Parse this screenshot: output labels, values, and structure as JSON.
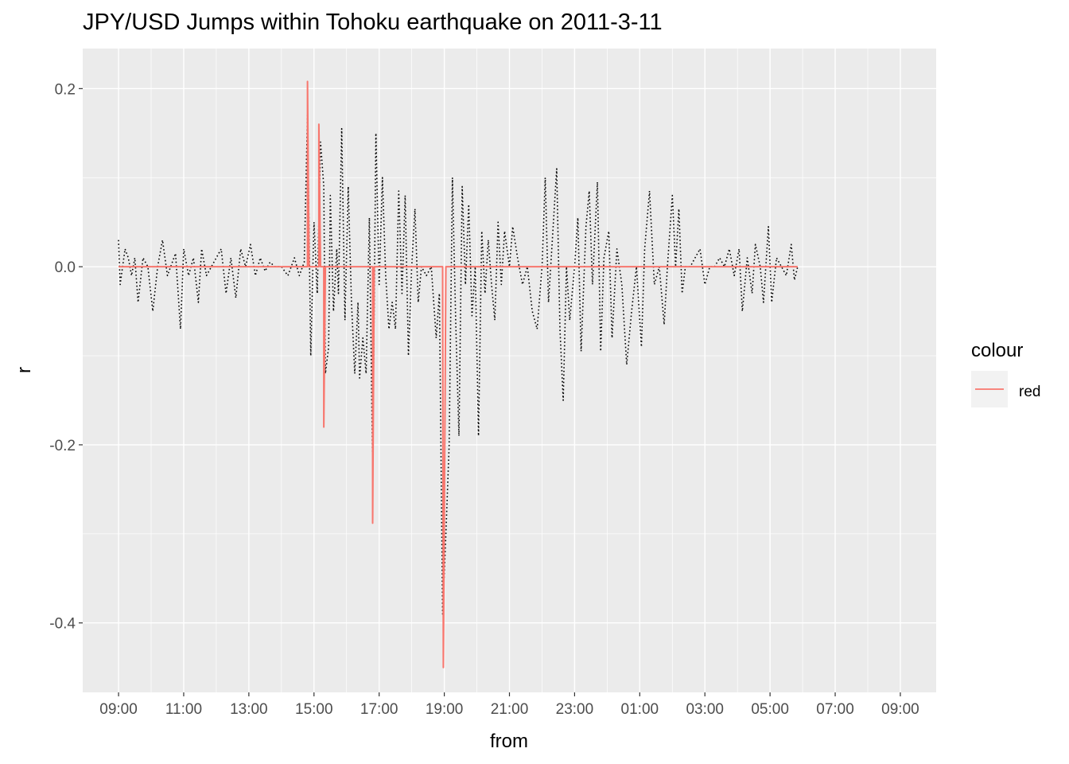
{
  "chart_data": {
    "type": "line",
    "title": "JPY/USD Jumps within Tohoku earthquake on 2011-3-11",
    "xlabel": "from",
    "ylabel": "r",
    "x_ticks": [
      "09:00",
      "11:00",
      "13:00",
      "15:00",
      "17:00",
      "19:00",
      "21:00",
      "23:00",
      "01:00",
      "03:00",
      "05:00",
      "07:00",
      "09:00"
    ],
    "x_tick_hours": [
      9,
      11,
      13,
      15,
      17,
      19,
      21,
      23,
      25,
      27,
      29,
      31,
      33
    ],
    "xlim_hours": [
      7.9,
      34.1
    ],
    "y_ticks": [
      0.2,
      0.0,
      -0.2,
      -0.4
    ],
    "y_tick_labels": [
      "0.2",
      "0.0",
      "-0.2",
      "-0.4"
    ],
    "ylim": [
      -0.478,
      0.245
    ],
    "grid": true,
    "legend": {
      "title": "colour",
      "placement": "right",
      "entries": [
        "red"
      ]
    },
    "series": [
      {
        "name": "red",
        "color": "#F8766D",
        "style": "solid",
        "points": [
          [
            9.0,
            0.0
          ],
          [
            14.8,
            0.0
          ],
          [
            14.8,
            0.208
          ],
          [
            14.85,
            0.0
          ],
          [
            15.15,
            0.0
          ],
          [
            15.15,
            0.16
          ],
          [
            15.2,
            0.0
          ],
          [
            15.3,
            0.0
          ],
          [
            15.3,
            -0.18
          ],
          [
            15.35,
            0.0
          ],
          [
            16.8,
            0.0
          ],
          [
            16.8,
            -0.288
          ],
          [
            16.85,
            0.0
          ],
          [
            18.95,
            0.0
          ],
          [
            18.97,
            -0.45
          ],
          [
            19.05,
            0.0
          ],
          [
            29.85,
            0.0
          ]
        ]
      },
      {
        "style": "dotted",
        "color": "#000000",
        "points": [
          [
            9.0,
            0.03
          ],
          [
            9.05,
            -0.02
          ],
          [
            9.2,
            0.02
          ],
          [
            9.3,
            0.01
          ],
          [
            9.4,
            -0.01
          ],
          [
            9.5,
            0.01
          ],
          [
            9.6,
            -0.04
          ],
          [
            9.75,
            0.01
          ],
          [
            9.9,
            0.0
          ],
          [
            10.05,
            -0.05
          ],
          [
            10.2,
            0.0
          ],
          [
            10.35,
            0.03
          ],
          [
            10.5,
            -0.01
          ],
          [
            10.6,
            0.0
          ],
          [
            10.75,
            0.015
          ],
          [
            10.9,
            -0.07
          ],
          [
            11.0,
            0.02
          ],
          [
            11.15,
            -0.01
          ],
          [
            11.3,
            0.01
          ],
          [
            11.45,
            -0.04
          ],
          [
            11.55,
            0.02
          ],
          [
            11.7,
            -0.01
          ],
          [
            11.85,
            0.0
          ],
          [
            12.0,
            0.01
          ],
          [
            12.15,
            0.02
          ],
          [
            12.3,
            -0.03
          ],
          [
            12.45,
            0.01
          ],
          [
            12.6,
            -0.035
          ],
          [
            12.75,
            0.02
          ],
          [
            12.9,
            0.0
          ],
          [
            13.05,
            0.025
          ],
          [
            13.2,
            -0.01
          ],
          [
            13.35,
            0.01
          ],
          [
            13.5,
            -0.005
          ],
          [
            13.65,
            0.005
          ],
          [
            13.8,
            0.0
          ],
          [
            14.0,
            0.0
          ],
          [
            14.2,
            -0.01
          ],
          [
            14.4,
            0.01
          ],
          [
            14.55,
            -0.01
          ],
          [
            14.7,
            0.005
          ],
          [
            14.8,
            0.17
          ],
          [
            14.9,
            -0.1
          ],
          [
            15.0,
            0.05
          ],
          [
            15.1,
            -0.03
          ],
          [
            15.2,
            0.14
          ],
          [
            15.3,
            0.09
          ],
          [
            15.35,
            -0.12
          ],
          [
            15.45,
            -0.09
          ],
          [
            15.5,
            0.08
          ],
          [
            15.6,
            -0.05
          ],
          [
            15.7,
            0.02
          ],
          [
            15.75,
            -0.03
          ],
          [
            15.85,
            0.155
          ],
          [
            15.95,
            -0.06
          ],
          [
            16.05,
            0.09
          ],
          [
            16.15,
            -0.04
          ],
          [
            16.25,
            -0.12
          ],
          [
            16.35,
            -0.04
          ],
          [
            16.4,
            -0.125
          ],
          [
            16.5,
            -0.08
          ],
          [
            16.6,
            -0.12
          ],
          [
            16.7,
            0.055
          ],
          [
            16.8,
            -0.225
          ],
          [
            16.9,
            0.15
          ],
          [
            17.0,
            -0.02
          ],
          [
            17.1,
            0.1
          ],
          [
            17.2,
            -0.01
          ],
          [
            17.3,
            -0.07
          ],
          [
            17.4,
            -0.04
          ],
          [
            17.5,
            -0.07
          ],
          [
            17.6,
            0.085
          ],
          [
            17.7,
            -0.03
          ],
          [
            17.8,
            0.08
          ],
          [
            17.9,
            -0.1
          ],
          [
            18.0,
            0.0
          ],
          [
            18.1,
            0.065
          ],
          [
            18.2,
            -0.04
          ],
          [
            18.3,
            0.0
          ],
          [
            18.45,
            -0.01
          ],
          [
            18.6,
            0.0
          ],
          [
            18.75,
            -0.08
          ],
          [
            18.85,
            -0.03
          ],
          [
            18.95,
            -0.39
          ],
          [
            19.05,
            -0.3
          ],
          [
            19.15,
            -0.2
          ],
          [
            19.25,
            0.1
          ],
          [
            19.35,
            -0.06
          ],
          [
            19.45,
            -0.19
          ],
          [
            19.55,
            0.09
          ],
          [
            19.65,
            -0.02
          ],
          [
            19.75,
            0.07
          ],
          [
            19.85,
            -0.055
          ],
          [
            19.95,
            0.0
          ],
          [
            20.05,
            -0.19
          ],
          [
            20.15,
            0.04
          ],
          [
            20.25,
            -0.03
          ],
          [
            20.35,
            0.03
          ],
          [
            20.45,
            -0.02
          ],
          [
            20.55,
            -0.06
          ],
          [
            20.65,
            0.05
          ],
          [
            20.75,
            -0.02
          ],
          [
            20.85,
            0.04
          ],
          [
            21.0,
            0.0
          ],
          [
            21.1,
            0.045
          ],
          [
            21.25,
            0.01
          ],
          [
            21.4,
            -0.02
          ],
          [
            21.55,
            0.0
          ],
          [
            21.7,
            -0.05
          ],
          [
            21.85,
            -0.07
          ],
          [
            22.0,
            0.0
          ],
          [
            22.1,
            0.1
          ],
          [
            22.2,
            -0.04
          ],
          [
            22.35,
            0.05
          ],
          [
            22.45,
            0.11
          ],
          [
            22.55,
            -0.07
          ],
          [
            22.65,
            -0.15
          ],
          [
            22.75,
            0.0
          ],
          [
            22.85,
            -0.06
          ],
          [
            23.0,
            0.0
          ],
          [
            23.1,
            0.055
          ],
          [
            23.2,
            -0.095
          ],
          [
            23.35,
            0.045
          ],
          [
            23.45,
            0.085
          ],
          [
            23.55,
            -0.02
          ],
          [
            23.7,
            0.095
          ],
          [
            23.8,
            -0.095
          ],
          [
            23.9,
            0.01
          ],
          [
            24.05,
            0.04
          ],
          [
            24.15,
            -0.08
          ],
          [
            24.3,
            0.02
          ],
          [
            24.45,
            -0.02
          ],
          [
            24.6,
            -0.11
          ],
          [
            24.75,
            -0.05
          ],
          [
            24.9,
            0.0
          ],
          [
            25.05,
            -0.09
          ],
          [
            25.15,
            0.02
          ],
          [
            25.3,
            0.085
          ],
          [
            25.45,
            -0.02
          ],
          [
            25.6,
            0.0
          ],
          [
            25.75,
            -0.065
          ],
          [
            25.85,
            0.0
          ],
          [
            26.0,
            0.08
          ],
          [
            26.1,
            0.0
          ],
          [
            26.2,
            0.065
          ],
          [
            26.3,
            -0.03
          ],
          [
            26.4,
            0.0
          ],
          [
            26.55,
            0.0
          ],
          [
            26.7,
            0.01
          ],
          [
            26.85,
            0.02
          ],
          [
            27.0,
            -0.02
          ],
          [
            27.15,
            0.0
          ],
          [
            27.3,
            0.0
          ],
          [
            27.45,
            0.01
          ],
          [
            27.6,
            0.0
          ],
          [
            27.75,
            0.02
          ],
          [
            27.9,
            -0.01
          ],
          [
            28.05,
            0.02
          ],
          [
            28.15,
            -0.05
          ],
          [
            28.3,
            0.01
          ],
          [
            28.45,
            -0.03
          ],
          [
            28.55,
            0.025
          ],
          [
            28.7,
            0.0
          ],
          [
            28.8,
            -0.04
          ],
          [
            28.95,
            0.045
          ],
          [
            29.05,
            -0.04
          ],
          [
            29.2,
            0.01
          ],
          [
            29.35,
            0.0
          ],
          [
            29.5,
            -0.01
          ],
          [
            29.65,
            0.025
          ],
          [
            29.75,
            -0.015
          ],
          [
            29.85,
            0.0
          ]
        ]
      }
    ]
  }
}
